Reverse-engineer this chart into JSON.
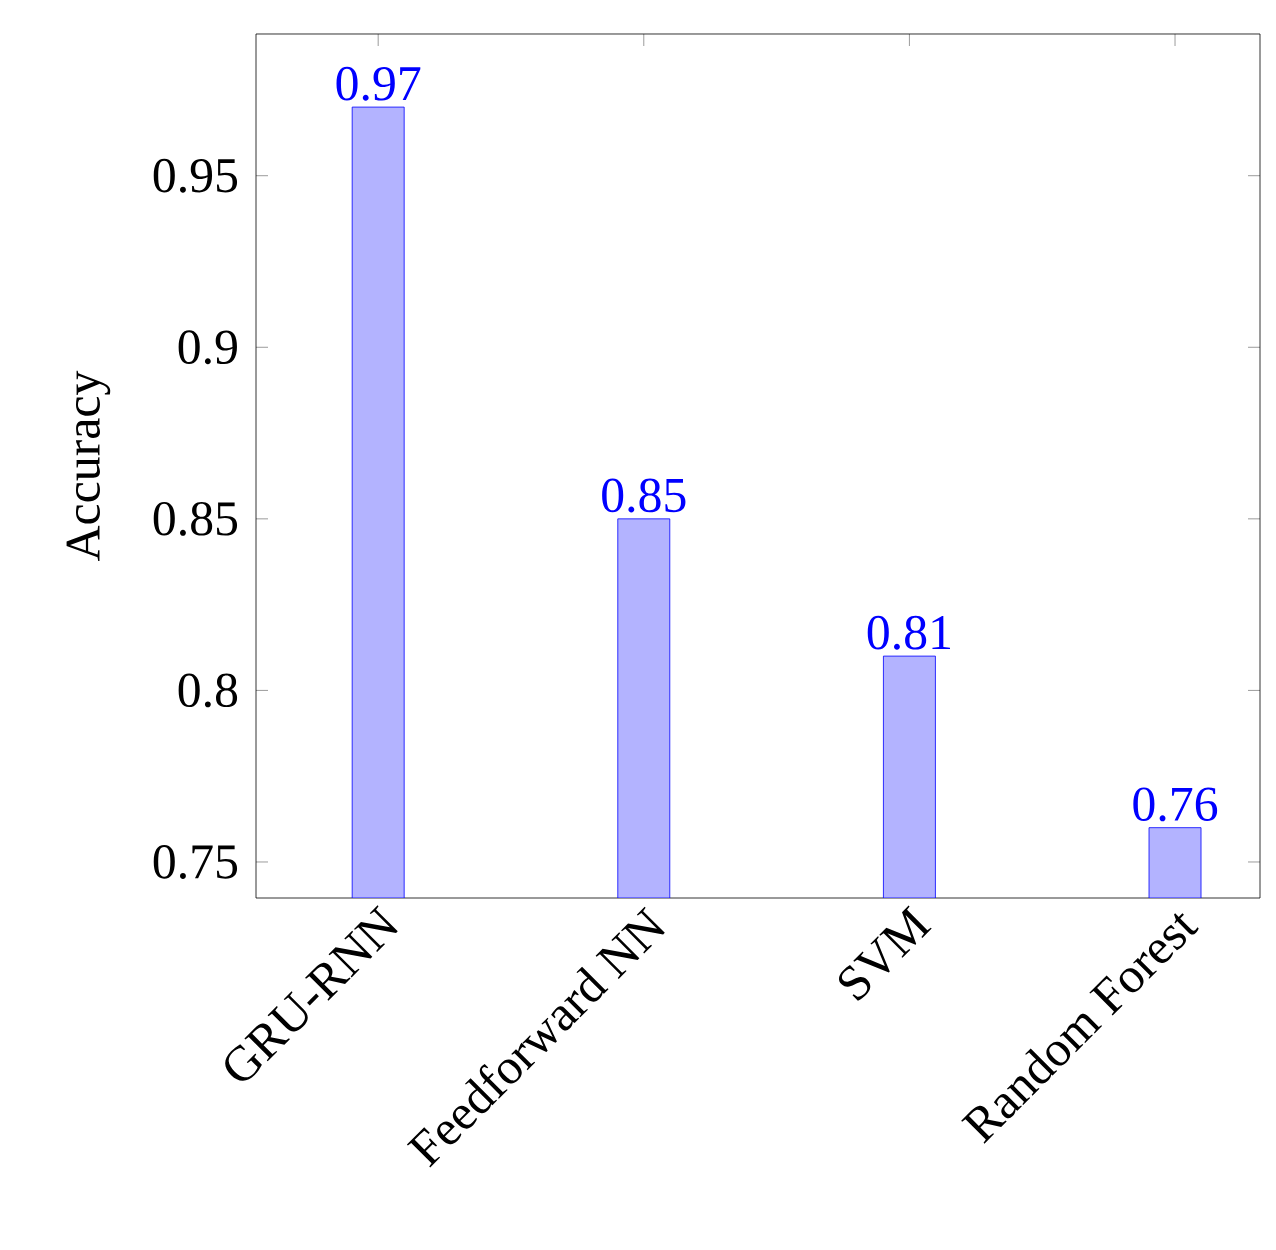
{
  "chart_data": {
    "type": "bar",
    "ylabel": "Accuracy",
    "categories": [
      "GRU-RNN",
      "Feedforward NN",
      "SVM",
      "Random Forest"
    ],
    "values": [
      0.97,
      0.85,
      0.81,
      0.76
    ],
    "color": "#b3b3ff",
    "ylim": [
      0.7395,
      0.9913
    ],
    "yticks": [
      0.75,
      0.8,
      0.85,
      0.9,
      0.95
    ],
    "data_labels": true
  }
}
